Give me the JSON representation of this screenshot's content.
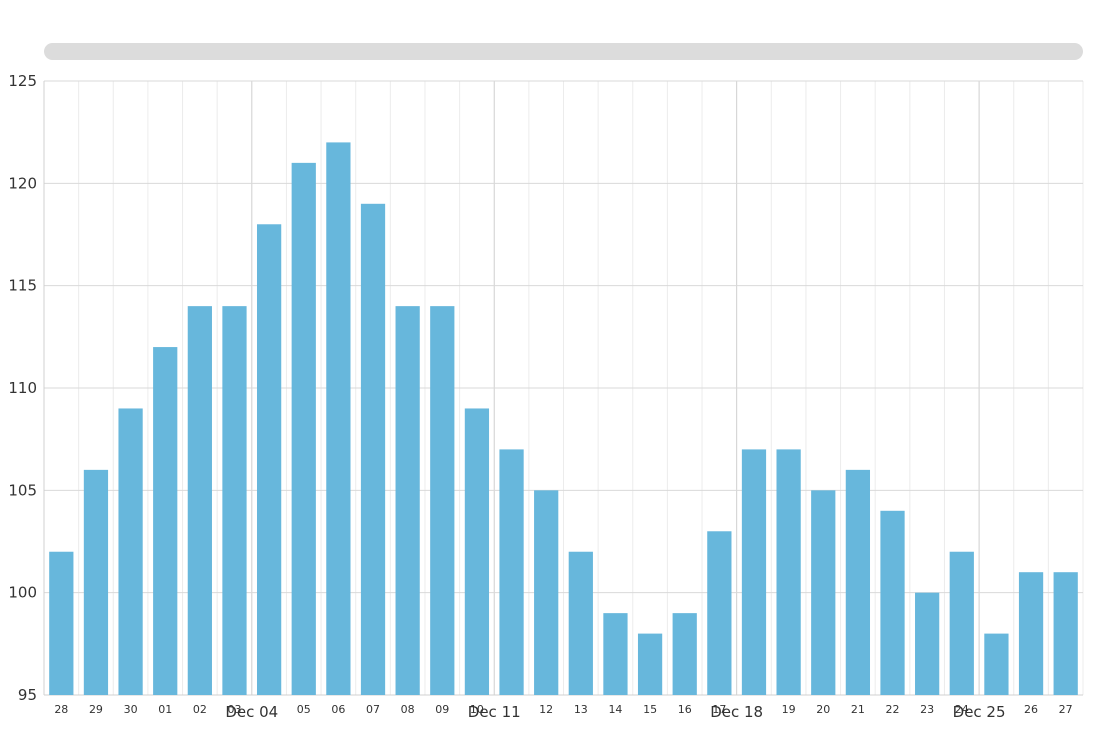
{
  "chart_data": {
    "type": "bar",
    "categories": [
      "28",
      "29",
      "30",
      "01",
      "02",
      "03",
      "Dec 04",
      "05",
      "06",
      "07",
      "08",
      "09",
      "10",
      "Dec 11",
      "12",
      "13",
      "14",
      "15",
      "16",
      "17",
      "Dec 18",
      "19",
      "20",
      "21",
      "22",
      "23",
      "24",
      "Dec 25",
      "26",
      "27"
    ],
    "values": [
      102,
      106,
      109,
      112,
      114,
      114,
      118,
      121,
      122,
      119,
      114,
      114,
      109,
      107,
      105,
      102,
      99,
      98,
      99,
      103,
      107,
      107,
      105,
      106,
      104,
      100,
      102,
      98,
      101,
      101
    ],
    "ylim": [
      95,
      125
    ],
    "yticks": [
      95,
      100,
      105,
      110,
      115,
      120,
      125
    ],
    "xlabel": "",
    "ylabel": "",
    "title": "",
    "bar_color": "#67b7dc",
    "grid": true,
    "scrollbar": true
  }
}
